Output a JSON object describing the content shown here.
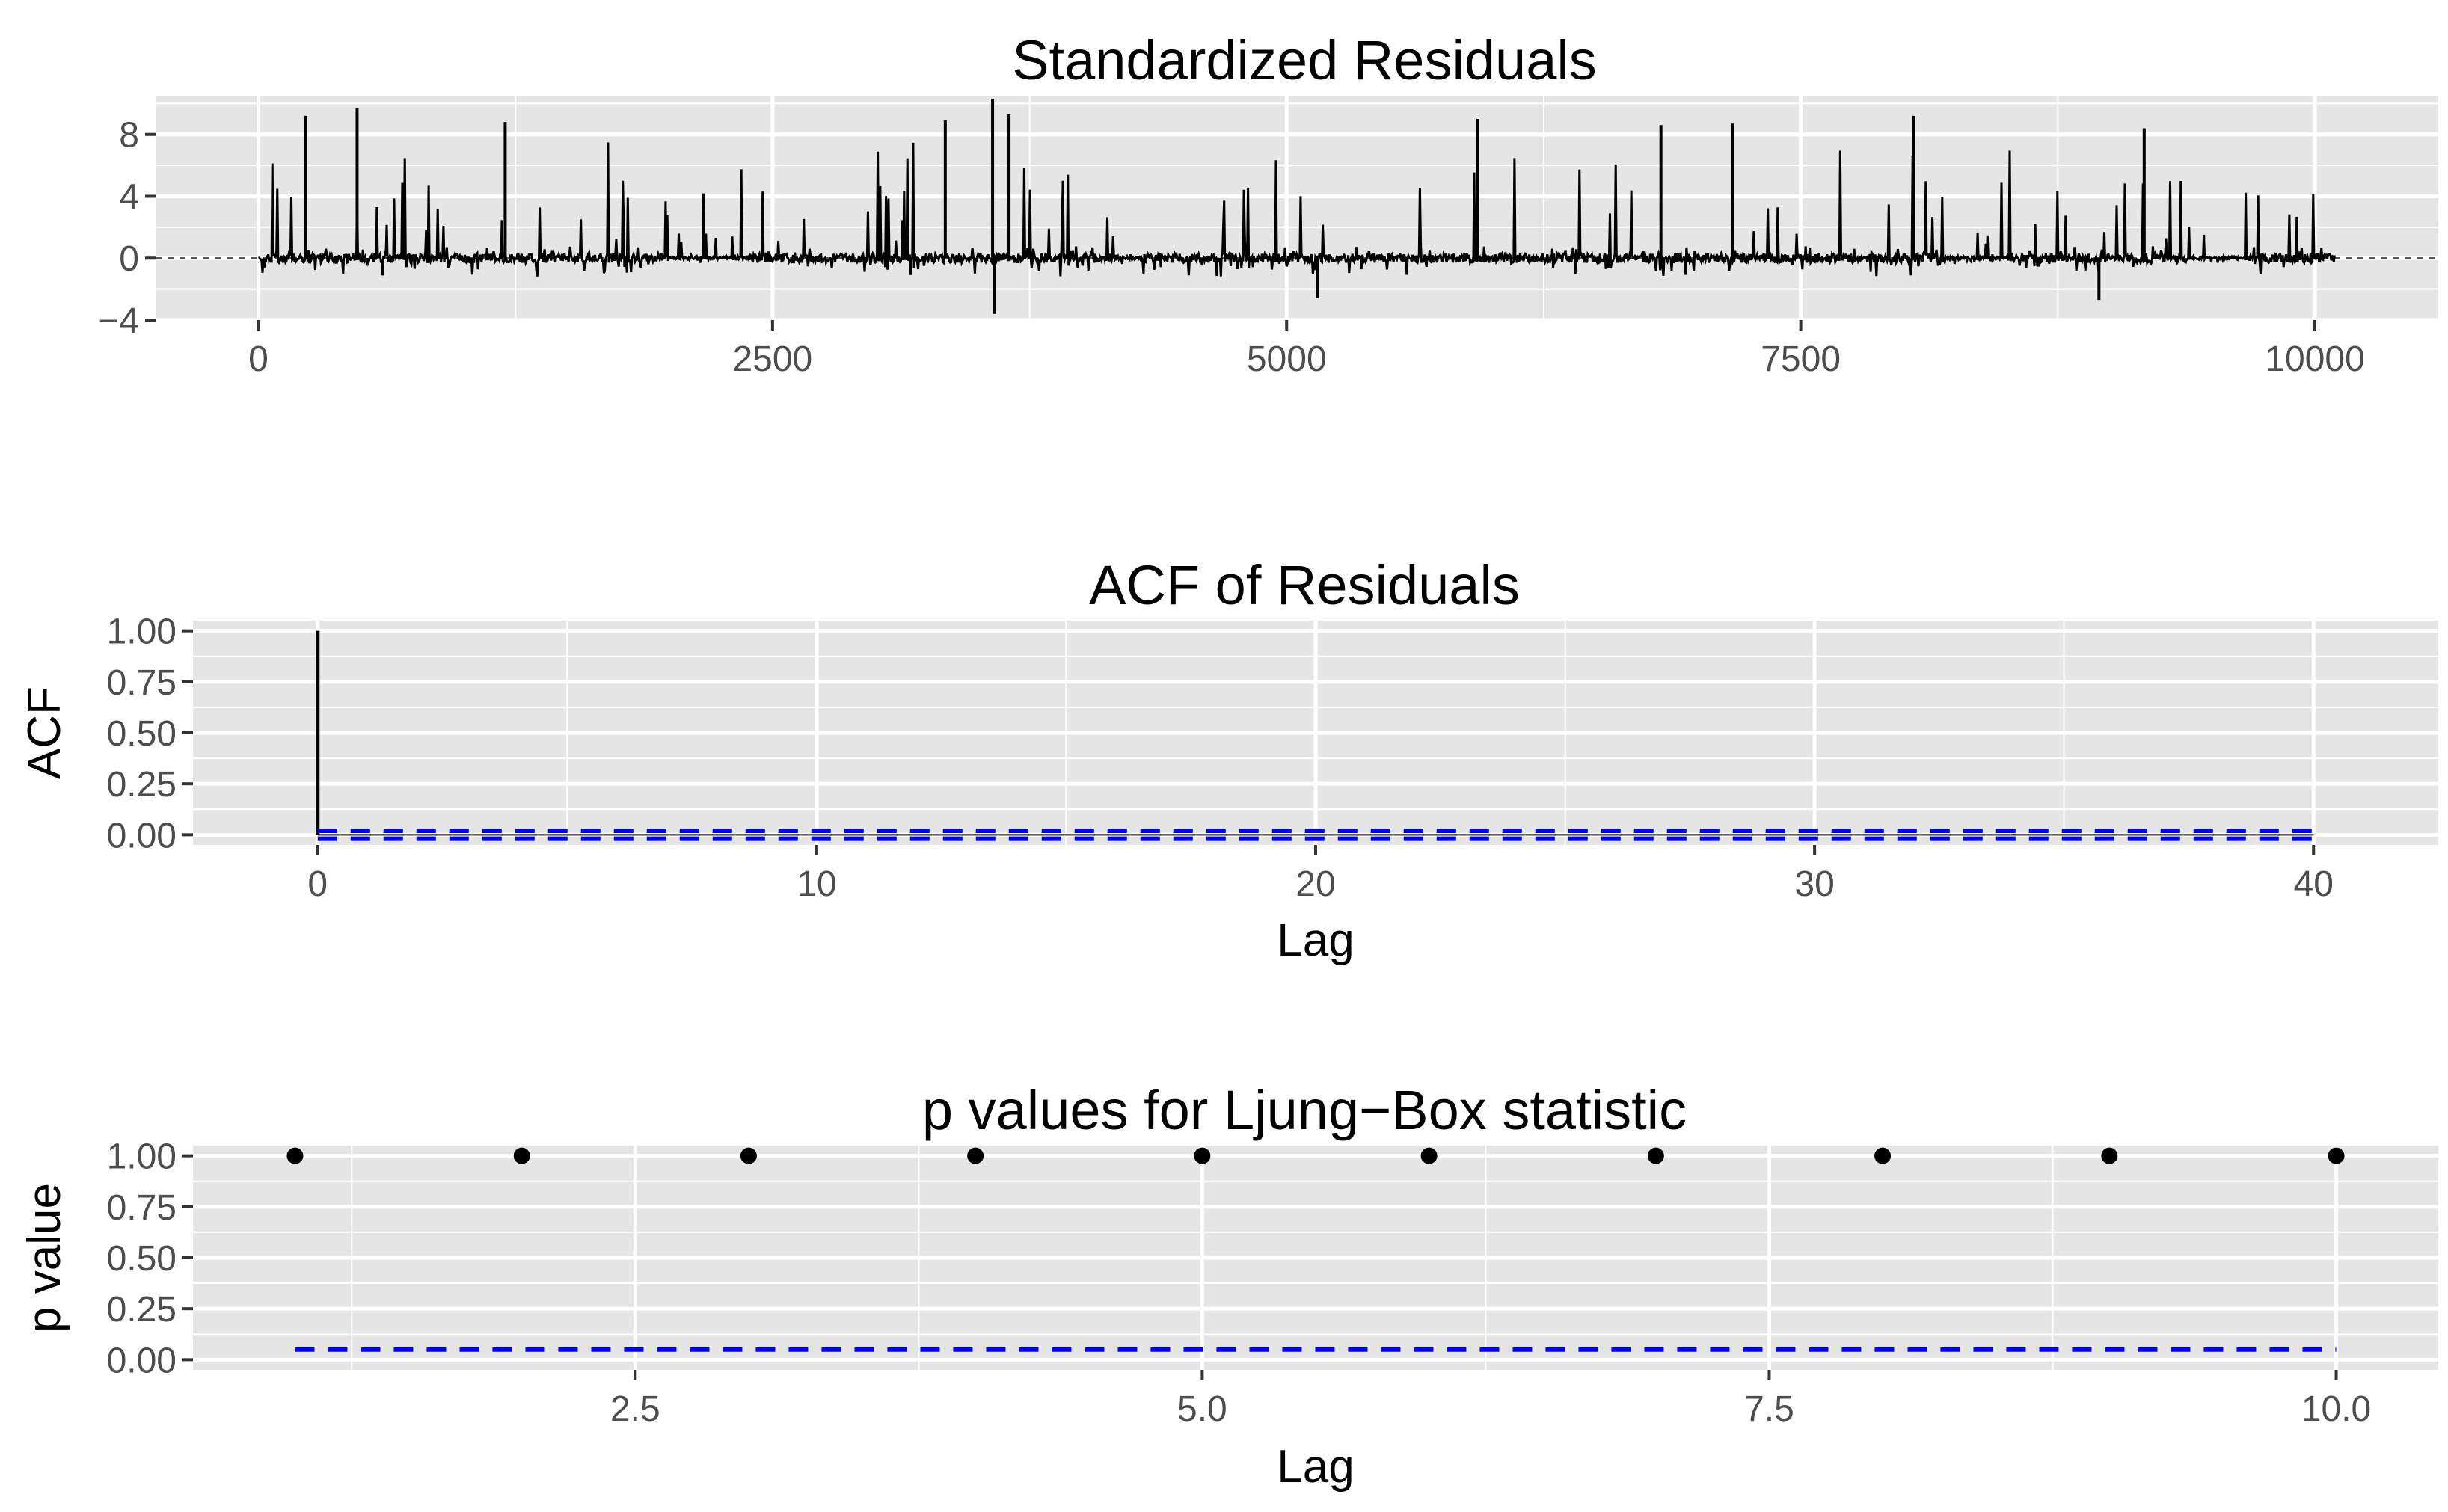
{
  "chart_data": [
    {
      "type": "line",
      "title": "Standardized Residuals",
      "xlabel": "",
      "ylabel": "",
      "xlim": [
        -500,
        10600
      ],
      "ylim": [
        -4,
        10.5
      ],
      "x_ticks": [
        0,
        2500,
        5000,
        7500,
        10000
      ],
      "x_tick_labels": [
        "0",
        "2500",
        "5000",
        "7500",
        "10000"
      ],
      "y_ticks": [
        -4,
        0,
        4,
        8
      ],
      "y_tick_labels": [
        "−4",
        "0",
        "4",
        "8"
      ],
      "series": [
        {
          "style": "residual-trace",
          "n": 10100,
          "noise_floor": [
            -1.2,
            1.0
          ],
          "spikes": [
            {
              "x": 230,
              "y": 9.2
            },
            {
              "x": 480,
              "y": 9.7
            },
            {
              "x": 1200,
              "y": 8.8
            },
            {
              "x": 3340,
              "y": 8.9
            },
            {
              "x": 3570,
              "y": 10.3
            },
            {
              "x": 3650,
              "y": 9.3
            },
            {
              "x": 5930,
              "y": 9.0
            },
            {
              "x": 6820,
              "y": 8.6
            },
            {
              "x": 7170,
              "y": 8.7
            },
            {
              "x": 8050,
              "y": 9.2
            },
            {
              "x": 9170,
              "y": 8.4
            },
            {
              "x": 3580,
              "y": -3.6
            },
            {
              "x": 5150,
              "y": -2.6
            },
            {
              "x": 8950,
              "y": -2.7
            }
          ]
        }
      ],
      "reference_lines": [
        {
          "y": 0,
          "style": "dashed",
          "color": "#555555"
        }
      ],
      "grid": true,
      "colors": {
        "panel": "#e5e5e5",
        "grid": "#ffffff",
        "line": "#000000"
      }
    },
    {
      "type": "bar",
      "title": "ACF of Residuals",
      "xlabel": "Lag",
      "ylabel": "ACF",
      "xlim": [
        -2.5,
        42.5
      ],
      "ylim": [
        -0.05,
        1.05
      ],
      "x_ticks": [
        0,
        10,
        20,
        30,
        40
      ],
      "x_tick_labels": [
        "0",
        "10",
        "20",
        "30",
        "40"
      ],
      "y_ticks": [
        0,
        0.25,
        0.5,
        0.75,
        1.0
      ],
      "y_tick_labels": [
        "0.00",
        "0.25",
        "0.50",
        "0.75",
        "1.00"
      ],
      "lags": [
        0,
        1,
        2,
        3,
        4,
        5,
        6,
        7,
        8,
        9,
        10,
        11,
        12,
        13,
        14,
        15,
        16,
        17,
        18,
        19,
        20,
        21,
        22,
        23,
        24,
        25,
        26,
        27,
        28,
        29,
        30,
        31,
        32,
        33,
        34,
        35,
        36,
        37,
        38,
        39,
        40
      ],
      "values": [
        1.0,
        0.002,
        -0.001,
        0.003,
        -0.002,
        0.001,
        0.0,
        -0.003,
        0.002,
        0.001,
        -0.001,
        0.002,
        0.0,
        -0.002,
        0.003,
        -0.001,
        0.001,
        -0.002,
        0.002,
        0.0,
        0.001,
        -0.001,
        0.002,
        -0.002,
        0.0,
        0.001,
        -0.001,
        0.002,
        -0.002,
        0.001,
        0.0,
        -0.003,
        0.002,
        -0.001,
        0.004,
        0.001,
        -0.002,
        0.003,
        0.0,
        -0.001,
        0.002
      ],
      "bounds": [
        0.0195,
        -0.0195
      ],
      "grid": true,
      "colors": {
        "panel": "#e5e5e5",
        "grid": "#ffffff",
        "bar": "#000000",
        "bounds": "#0000ff"
      }
    },
    {
      "type": "scatter",
      "title": "p values for Ljung−Box statistic",
      "xlabel": "Lag",
      "ylabel": "p value",
      "xlim": [
        0.55,
        10.45
      ],
      "ylim": [
        -0.05,
        1.05
      ],
      "x_ticks": [
        2.5,
        5.0,
        7.5,
        10.0
      ],
      "x_tick_labels": [
        "2.5",
        "5.0",
        "7.5",
        "10.0"
      ],
      "y_ticks": [
        0,
        0.25,
        0.5,
        0.75,
        1.0
      ],
      "y_tick_labels": [
        "0.00",
        "0.25",
        "0.50",
        "0.75",
        "1.00"
      ],
      "x": [
        1,
        2,
        3,
        4,
        5,
        6,
        7,
        8,
        9,
        10
      ],
      "y": [
        1.0,
        1.0,
        1.0,
        1.0,
        1.0,
        1.0,
        1.0,
        1.0,
        1.0,
        1.0
      ],
      "reference_lines": [
        {
          "y": 0.05,
          "style": "dashed",
          "color": "#0000ff"
        }
      ],
      "grid": true,
      "colors": {
        "panel": "#e5e5e5",
        "grid": "#ffffff",
        "point": "#000000"
      }
    }
  ]
}
